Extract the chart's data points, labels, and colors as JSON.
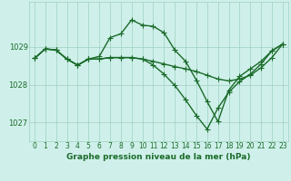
{
  "xlabel": "Graphe pression niveau de la mer (hPa)",
  "ylim": [
    1026.5,
    1030.2
  ],
  "yticks": [
    1027,
    1028,
    1029
  ],
  "bg_color": "#cff0ea",
  "plot_bg": "#cff0ea",
  "grid_color": "#9ecfbf",
  "line_color": "#1a6b2a",
  "series": [
    [
      1028.7,
      1028.95,
      1028.92,
      1028.68,
      1028.52,
      1028.68,
      1028.75,
      1029.25,
      1029.35,
      1029.72,
      1029.58,
      1029.55,
      1029.38,
      1028.92,
      1028.62,
      1028.12,
      1027.55,
      1027.02,
      1027.85,
      1028.22,
      1028.42,
      1028.62,
      1028.9,
      1029.08
    ],
    [
      1028.7,
      1028.95,
      1028.92,
      1028.68,
      1028.52,
      1028.68,
      1028.68,
      1028.72,
      1028.72,
      1028.72,
      1028.68,
      1028.62,
      1028.55,
      1028.48,
      1028.42,
      1028.35,
      1028.25,
      1028.15,
      1028.1,
      1028.15,
      1028.25,
      1028.45,
      1028.72,
      1029.08
    ],
    [
      1028.7,
      1028.95,
      1028.92,
      1028.68,
      1028.52,
      1028.68,
      1028.68,
      1028.72,
      1028.72,
      1028.72,
      1028.68,
      1028.52,
      1028.28,
      1027.98,
      1027.6,
      1027.18,
      1026.82,
      1027.38,
      1027.8,
      1028.08,
      1028.28,
      1028.55,
      1028.9,
      1029.08
    ]
  ],
  "marker": "+",
  "markersize": 4,
  "linewidth": 1.0,
  "xlabel_fontsize": 6.5,
  "tick_fontsize": 5.5,
  "ytick_fontsize": 6.0
}
